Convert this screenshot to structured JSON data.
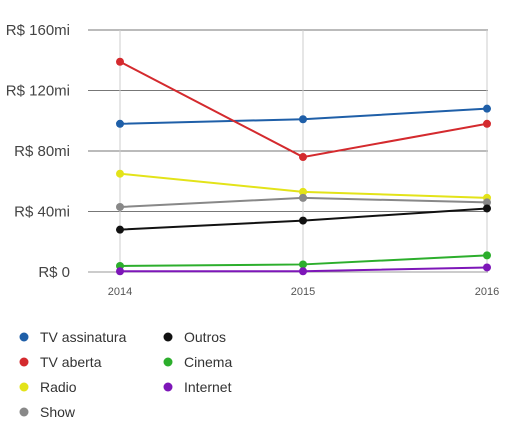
{
  "chart_data": {
    "type": "line",
    "x": [
      "2014",
      "2015",
      "2016"
    ],
    "ylim": [
      0,
      160
    ],
    "yticks": [
      {
        "value": 0,
        "label": "R$ 0"
      },
      {
        "value": 40,
        "label": "R$ 40mi"
      },
      {
        "value": 80,
        "label": "R$ 80mi"
      },
      {
        "value": 120,
        "label": "R$ 120mi"
      },
      {
        "value": 160,
        "label": "R$ 160mi"
      }
    ],
    "grid": true,
    "legend_position": "bottom",
    "series": [
      {
        "name": "TV assinatura",
        "color": "#1f5fa8",
        "values": [
          98,
          101,
          108
        ]
      },
      {
        "name": "TV aberta",
        "color": "#d42a2e",
        "values": [
          139,
          76,
          98
        ]
      },
      {
        "name": "Radio",
        "color": "#e3e319",
        "values": [
          65,
          53,
          49
        ]
      },
      {
        "name": "Show",
        "color": "#888888",
        "values": [
          43,
          49,
          46
        ]
      },
      {
        "name": "Outros",
        "color": "#111111",
        "values": [
          28,
          34,
          42
        ]
      },
      {
        "name": "Cinema",
        "color": "#2cae2c",
        "values": [
          4,
          5,
          11
        ]
      },
      {
        "name": "Internet",
        "color": "#7d16b8",
        "values": [
          0.5,
          0.5,
          3
        ]
      }
    ]
  }
}
